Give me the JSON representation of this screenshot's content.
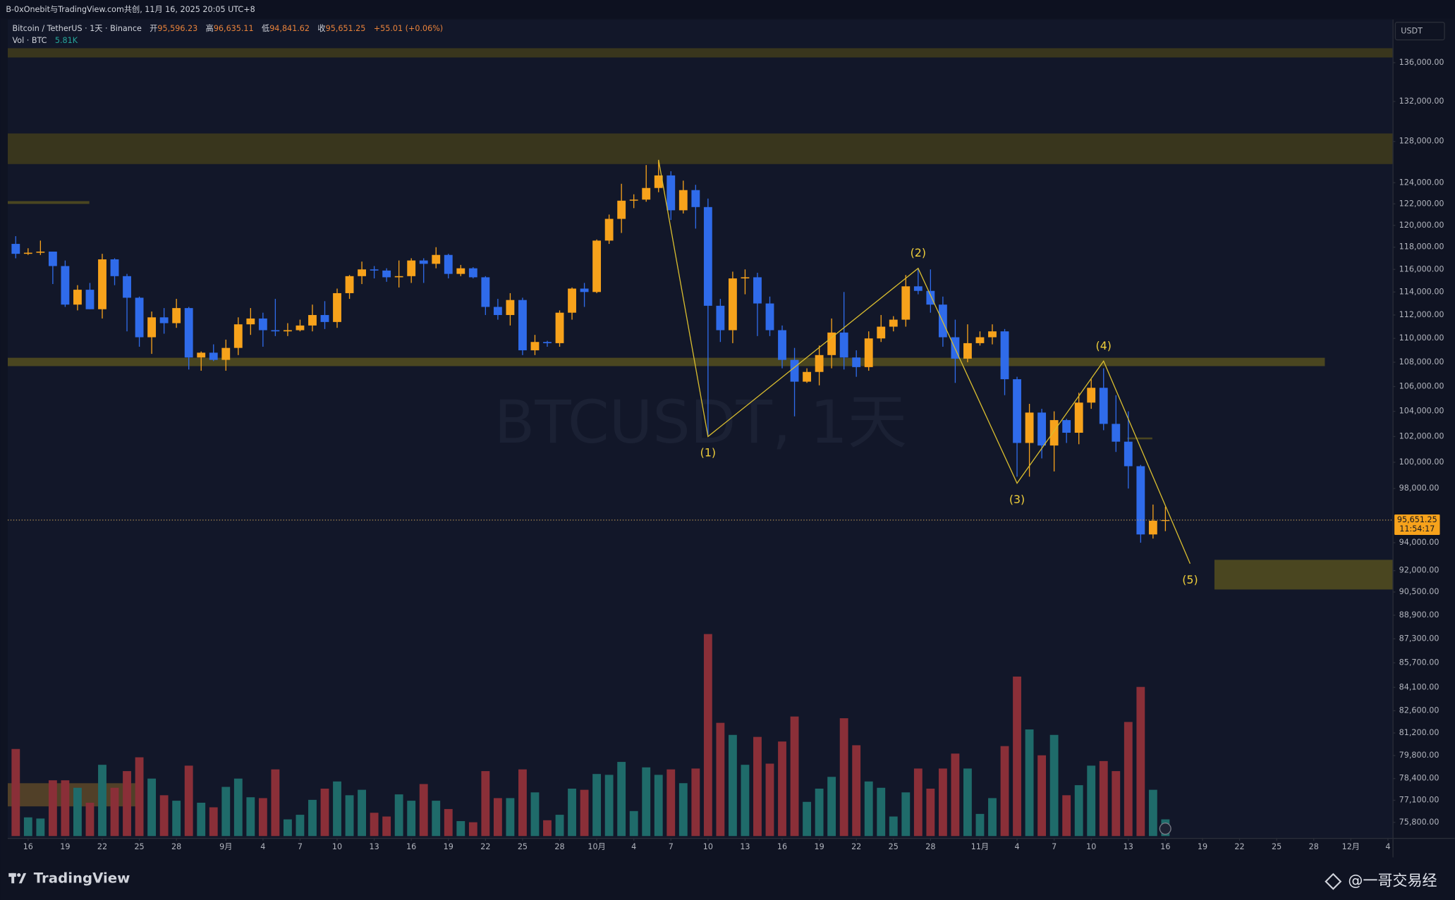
{
  "header": {
    "source": "B-0xOnebit与TradingView.com共创, 11月 16, 2025 20:05 UTC+8"
  },
  "footer": {
    "brand": "TradingView",
    "author": "@一哥交易经"
  },
  "chart_data": {
    "type": "candlestick",
    "symbol": "Bitcoin / TetherUS · 1天 · Binance",
    "watermark": "BTCUSDT, 1天",
    "legend": {
      "open_key": "开",
      "open": "95,596.23",
      "high_key": "高",
      "high": "96,635.11",
      "low_key": "低",
      "low": "94,841.62",
      "close_key": "收",
      "close": "95,651.25",
      "change": "+55.01 (+0.06%)",
      "volume_name": "Vol · BTC",
      "volume": "5.81K"
    },
    "y_unit": "USDT",
    "log": true,
    "grid": false,
    "up_color": "#f7a21b",
    "down_color": "#2f6bea",
    "volume_up_color": "#1f6b6a",
    "volume_down_color": "#8a2f38",
    "xlim": [
      "2025-08-14",
      "2025-12-04"
    ],
    "ylim": [
      74900,
      140600
    ],
    "yticks": [
      {
        "value": 136000,
        "label": "136,000.00"
      },
      {
        "value": 132000,
        "label": "132,000.00"
      },
      {
        "value": 128000,
        "label": "128,000.00"
      },
      {
        "value": 124000,
        "label": "124,000.00"
      },
      {
        "value": 122000,
        "label": "122,000.00"
      },
      {
        "value": 120000,
        "label": "120,000.00"
      },
      {
        "value": 118000,
        "label": "118,000.00"
      },
      {
        "value": 116000,
        "label": "116,000.00"
      },
      {
        "value": 114000,
        "label": "114,000.00"
      },
      {
        "value": 112000,
        "label": "112,000.00"
      },
      {
        "value": 110000,
        "label": "110,000.00"
      },
      {
        "value": 108000,
        "label": "108,000.00"
      },
      {
        "value": 106000,
        "label": "106,000.00"
      },
      {
        "value": 104000,
        "label": "104,000.00"
      },
      {
        "value": 102000,
        "label": "102,000.00"
      },
      {
        "value": 100000,
        "label": "100,000.00"
      },
      {
        "value": 98000,
        "label": "98,000.00"
      },
      {
        "value": 94000,
        "label": "94,000.00"
      },
      {
        "value": 92000,
        "label": "92,000.00"
      },
      {
        "value": 90500,
        "label": "90,500.00"
      },
      {
        "value": 88900,
        "label": "88,900.00"
      },
      {
        "value": 87300,
        "label": "87,300.00"
      },
      {
        "value": 85700,
        "label": "85,700.00"
      },
      {
        "value": 84100,
        "label": "84,100.00"
      },
      {
        "value": 82600,
        "label": "82,600.00"
      },
      {
        "value": 81200,
        "label": "81,200.00"
      },
      {
        "value": 79800,
        "label": "79,800.00"
      },
      {
        "value": 78400,
        "label": "78,400.00"
      },
      {
        "value": 77100,
        "label": "77,100.00"
      },
      {
        "value": 75800,
        "label": "75,800.00"
      }
    ],
    "xticks": [
      {
        "value": "2025-08-16",
        "label": "16"
      },
      {
        "value": "2025-08-19",
        "label": "19"
      },
      {
        "value": "2025-08-22",
        "label": "22"
      },
      {
        "value": "2025-08-25",
        "label": "25"
      },
      {
        "value": "2025-08-28",
        "label": "28"
      },
      {
        "value": "2025-09-01",
        "label": "9月"
      },
      {
        "value": "2025-09-04",
        "label": "4"
      },
      {
        "value": "2025-09-07",
        "label": "7"
      },
      {
        "value": "2025-09-10",
        "label": "10"
      },
      {
        "value": "2025-09-13",
        "label": "13"
      },
      {
        "value": "2025-09-16",
        "label": "16"
      },
      {
        "value": "2025-09-19",
        "label": "19"
      },
      {
        "value": "2025-09-22",
        "label": "22"
      },
      {
        "value": "2025-09-25",
        "label": "25"
      },
      {
        "value": "2025-09-28",
        "label": "28"
      },
      {
        "value": "2025-10-01",
        "label": "10月"
      },
      {
        "value": "2025-10-04",
        "label": "4"
      },
      {
        "value": "2025-10-07",
        "label": "7"
      },
      {
        "value": "2025-10-10",
        "label": "10"
      },
      {
        "value": "2025-10-13",
        "label": "13"
      },
      {
        "value": "2025-10-16",
        "label": "16"
      },
      {
        "value": "2025-10-19",
        "label": "19"
      },
      {
        "value": "2025-10-22",
        "label": "22"
      },
      {
        "value": "2025-10-25",
        "label": "25"
      },
      {
        "value": "2025-10-28",
        "label": "28"
      },
      {
        "value": "2025-11-01",
        "label": "11月"
      },
      {
        "value": "2025-11-04",
        "label": "4"
      },
      {
        "value": "2025-11-07",
        "label": "7"
      },
      {
        "value": "2025-11-10",
        "label": "10"
      },
      {
        "value": "2025-11-13",
        "label": "13"
      },
      {
        "value": "2025-11-16",
        "label": "16"
      },
      {
        "value": "2025-11-19",
        "label": "19"
      },
      {
        "value": "2025-11-22",
        "label": "22"
      },
      {
        "value": "2025-11-25",
        "label": "25"
      },
      {
        "value": "2025-11-28",
        "label": "28"
      },
      {
        "value": "2025-12-01",
        "label": "12月"
      },
      {
        "value": "2025-12-04",
        "label": "4"
      }
    ],
    "x": [
      "2025-08-15",
      "2025-08-16",
      "2025-08-17",
      "2025-08-18",
      "2025-08-19",
      "2025-08-20",
      "2025-08-21",
      "2025-08-22",
      "2025-08-23",
      "2025-08-24",
      "2025-08-25",
      "2025-08-26",
      "2025-08-27",
      "2025-08-28",
      "2025-08-29",
      "2025-08-30",
      "2025-08-31",
      "2025-09-01",
      "2025-09-02",
      "2025-09-03",
      "2025-09-04",
      "2025-09-05",
      "2025-09-06",
      "2025-09-07",
      "2025-09-08",
      "2025-09-09",
      "2025-09-10",
      "2025-09-11",
      "2025-09-12",
      "2025-09-13",
      "2025-09-14",
      "2025-09-15",
      "2025-09-16",
      "2025-09-17",
      "2025-09-18",
      "2025-09-19",
      "2025-09-20",
      "2025-09-21",
      "2025-09-22",
      "2025-09-23",
      "2025-09-24",
      "2025-09-25",
      "2025-09-26",
      "2025-09-27",
      "2025-09-28",
      "2025-09-29",
      "2025-09-30",
      "2025-10-01",
      "2025-10-02",
      "2025-10-03",
      "2025-10-04",
      "2025-10-05",
      "2025-10-06",
      "2025-10-07",
      "2025-10-08",
      "2025-10-09",
      "2025-10-10",
      "2025-10-11",
      "2025-10-12",
      "2025-10-13",
      "2025-10-14",
      "2025-10-15",
      "2025-10-16",
      "2025-10-17",
      "2025-10-18",
      "2025-10-19",
      "2025-10-20",
      "2025-10-21",
      "2025-10-22",
      "2025-10-23",
      "2025-10-24",
      "2025-10-25",
      "2025-10-26",
      "2025-10-27",
      "2025-10-28",
      "2025-10-29",
      "2025-10-30",
      "2025-10-31",
      "2025-11-01",
      "2025-11-02",
      "2025-11-03",
      "2025-11-04",
      "2025-11-05",
      "2025-11-06",
      "2025-11-07",
      "2025-11-08",
      "2025-11-09",
      "2025-11-10",
      "2025-11-11",
      "2025-11-12",
      "2025-11-13",
      "2025-11-14",
      "2025-11-15",
      "2025-11-16"
    ],
    "open": [
      118300,
      117400,
      117500,
      117600,
      116300,
      112900,
      114200,
      112500,
      116900,
      115400,
      113500,
      110100,
      111800,
      111300,
      112600,
      108400,
      108800,
      108200,
      109200,
      111200,
      111700,
      110700,
      110600,
      110700,
      111100,
      112000,
      111400,
      113900,
      115400,
      116000,
      115900,
      115300,
      115400,
      116800,
      116500,
      117300,
      115600,
      116100,
      115300,
      112700,
      112000,
      113300,
      109000,
      109700,
      109600,
      112200,
      114300,
      114000,
      118600,
      120600,
      122300,
      122400,
      123500,
      124700,
      121400,
      123300,
      121700,
      112800,
      110700,
      115200,
      115300,
      113000,
      110700,
      108200,
      106400,
      107200,
      108600,
      110500,
      108400,
      107600,
      110000,
      111000,
      111600,
      114500,
      114100,
      112900,
      110100,
      108300,
      109600,
      110100,
      110600,
      106600,
      101500,
      103900,
      101300,
      103300,
      102300,
      104700,
      105900,
      103000,
      101600,
      99700,
      94600,
      95596.23
    ],
    "high": [
      119000,
      117900,
      118600,
      117600,
      116800,
      114600,
      114800,
      117400,
      117000,
      115600,
      113600,
      112300,
      112600,
      113400,
      112700,
      108900,
      109500,
      109900,
      111800,
      112600,
      112200,
      113400,
      111300,
      111600,
      112900,
      113200,
      114300,
      115500,
      116700,
      116300,
      116100,
      116800,
      117000,
      117000,
      118000,
      117400,
      116400,
      116200,
      115400,
      113400,
      113900,
      113500,
      110300,
      109800,
      112400,
      114400,
      114800,
      118700,
      121000,
      123900,
      122900,
      125700,
      126200,
      125100,
      124200,
      123800,
      122500,
      113400,
      115800,
      116000,
      115700,
      113600,
      111100,
      109200,
      107500,
      109400,
      111700,
      114000,
      109000,
      110600,
      112000,
      111900,
      115500,
      116100,
      116000,
      113600,
      111600,
      111200,
      110600,
      111200,
      110800,
      106800,
      104600,
      104200,
      104000,
      103400,
      105500,
      106600,
      107500,
      105300,
      104000,
      99800,
      96800,
      96635.11
    ],
    "low": [
      117000,
      117300,
      117300,
      114700,
      112700,
      112400,
      112500,
      111700,
      114600,
      110600,
      109300,
      108700,
      110400,
      110900,
      107400,
      107300,
      108100,
      107300,
      108600,
      110300,
      109300,
      110200,
      110200,
      110600,
      110600,
      110800,
      110900,
      113400,
      114700,
      115200,
      114900,
      114400,
      114800,
      114800,
      116100,
      115200,
      115400,
      115200,
      112000,
      111600,
      111100,
      108600,
      108600,
      109300,
      109300,
      111600,
      112700,
      113900,
      118300,
      119300,
      121600,
      122200,
      123100,
      120500,
      121100,
      119700,
      102000,
      109700,
      109600,
      113800,
      110200,
      110200,
      107500,
      103600,
      106300,
      106100,
      107500,
      107400,
      106800,
      107300,
      109700,
      110600,
      111000,
      113800,
      112200,
      109300,
      106300,
      108000,
      109400,
      109500,
      105300,
      98900,
      98900,
      100300,
      99300,
      101500,
      101400,
      104200,
      102500,
      100800,
      98000,
      94000,
      94300,
      94841.62
    ],
    "close": [
      117400,
      117500,
      117600,
      116300,
      112900,
      114200,
      112500,
      116900,
      115400,
      113500,
      110100,
      111800,
      111300,
      112600,
      108400,
      108800,
      108200,
      109200,
      111200,
      111700,
      110700,
      110600,
      110700,
      111100,
      112000,
      111400,
      113900,
      115400,
      116000,
      115900,
      115300,
      115400,
      116800,
      116500,
      117300,
      115600,
      116100,
      115300,
      112700,
      112000,
      113300,
      109000,
      109700,
      109600,
      112200,
      114300,
      114000,
      118600,
      120600,
      122300,
      122400,
      123500,
      124700,
      121400,
      123300,
      121700,
      112800,
      110700,
      115200,
      115300,
      113000,
      110700,
      108200,
      106400,
      107200,
      108600,
      110500,
      108400,
      107600,
      110000,
      111000,
      111600,
      114500,
      114100,
      112900,
      110100,
      108300,
      109600,
      110100,
      110600,
      106600,
      101500,
      103900,
      101300,
      103300,
      102300,
      104700,
      105900,
      103000,
      101600,
      99700,
      94600,
      95600,
      95651.25
    ],
    "volume": [
      30300,
      6500,
      6100,
      19400,
      19400,
      16800,
      11600,
      24800,
      16800,
      22600,
      27400,
      20000,
      14200,
      12300,
      24500,
      11600,
      10000,
      17100,
      20000,
      13500,
      13200,
      23200,
      5800,
      7400,
      12600,
      16500,
      19000,
      14200,
      16100,
      8100,
      6800,
      14500,
      12300,
      18100,
      12300,
      9400,
      5200,
      4800,
      22600,
      13200,
      13200,
      23200,
      15200,
      5500,
      7400,
      16500,
      16100,
      21600,
      21300,
      25800,
      8700,
      23900,
      21300,
      23200,
      18400,
      23500,
      70300,
      39400,
      35200,
      24800,
      34500,
      25200,
      32900,
      41600,
      11900,
      16500,
      20600,
      41000,
      31600,
      19000,
      16800,
      6800,
      15200,
      23500,
      16500,
      23500,
      28700,
      23500,
      7700,
      13200,
      31300,
      55500,
      37100,
      28100,
      35200,
      14200,
      17700,
      24500,
      26100,
      22600,
      39700,
      51900,
      16100,
      5810
    ],
    "last_price": {
      "value": 95651.25,
      "label": "95,651.25",
      "countdown": "11:54:17"
    },
    "wave": {
      "color": "#d9bd2f",
      "start": {
        "x": "2025-10-06",
        "price": 126200
      },
      "points": [
        {
          "label": "(1)",
          "x": "2025-10-10",
          "price": 102000
        },
        {
          "label": "(2)",
          "x": "2025-10-27",
          "price": 116100
        },
        {
          "label": "(3)",
          "x": "2025-11-04",
          "price": 98400
        },
        {
          "label": "(4)",
          "x": "2025-11-11",
          "price": 108100
        },
        {
          "label": "(5)",
          "x": "2025-11-18",
          "price": 92500
        }
      ]
    }
  }
}
